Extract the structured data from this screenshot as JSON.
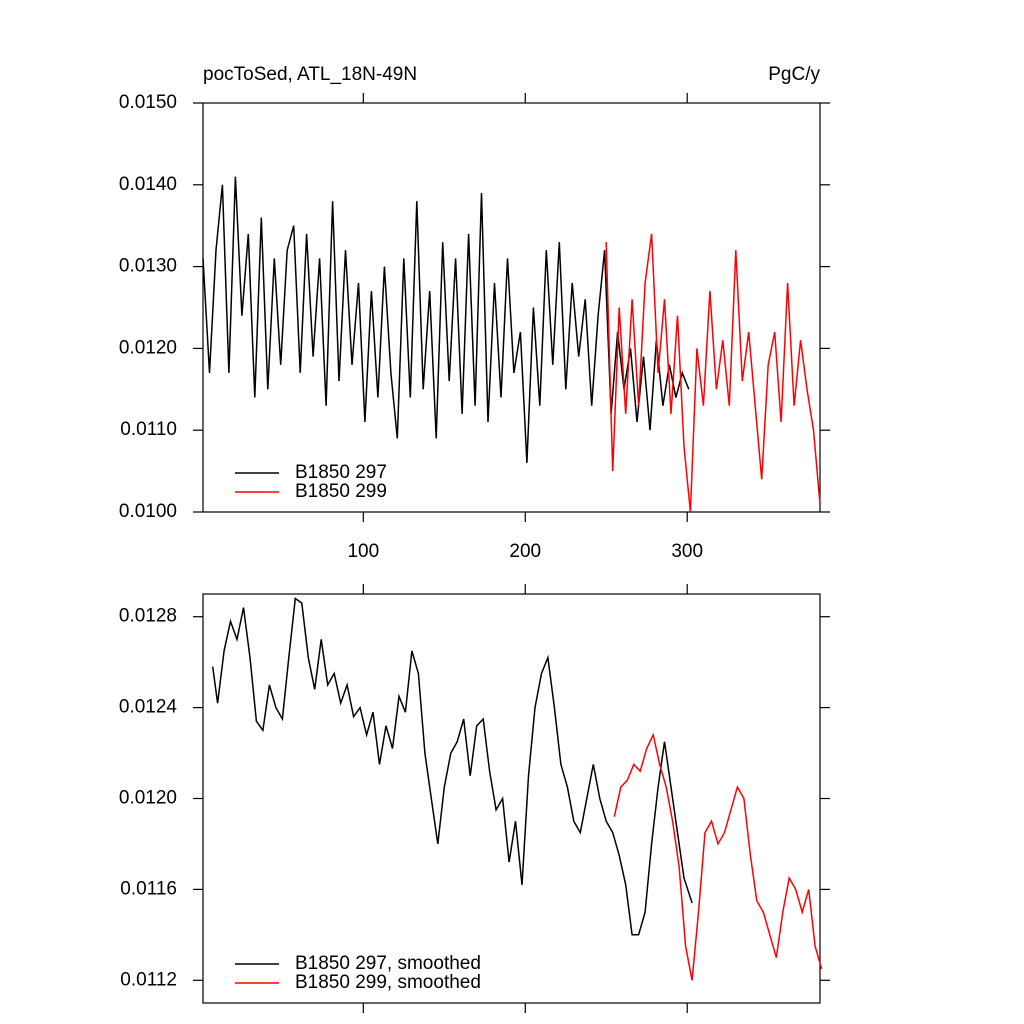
{
  "chart_data": [
    {
      "type": "line",
      "title": "pocToSed, ATL_18N-49N",
      "units": "PgC/y",
      "xlim": [
        1,
        382
      ],
      "xticks": [
        100,
        200,
        300
      ],
      "ylim": [
        0.01,
        0.015
      ],
      "yticks": [
        {
          "value": 0.01,
          "label": "0.0100"
        },
        {
          "value": 0.011,
          "label": "0.0110"
        },
        {
          "value": 0.012,
          "label": "0.0120"
        },
        {
          "value": 0.013,
          "label": "0.0130"
        },
        {
          "value": 0.014,
          "label": "0.0140"
        },
        {
          "value": 0.015,
          "label": "0.0150"
        }
      ],
      "legend": "lower left",
      "series": [
        {
          "name": "B1850 297",
          "color": "#000000",
          "x": [
            1,
            5,
            9,
            13,
            17,
            21,
            25,
            29,
            33,
            37,
            41,
            45,
            49,
            53,
            57,
            61,
            65,
            69,
            73,
            77,
            81,
            85,
            89,
            93,
            97,
            101,
            105,
            109,
            113,
            117,
            121,
            125,
            129,
            133,
            137,
            141,
            145,
            149,
            153,
            157,
            161,
            165,
            169,
            173,
            177,
            181,
            185,
            189,
            193,
            197,
            201,
            205,
            209,
            213,
            217,
            221,
            225,
            229,
            233,
            237,
            241,
            245,
            249,
            253,
            257,
            261,
            265,
            269,
            273,
            277,
            281,
            285,
            289,
            293,
            297,
            301
          ],
          "values": [
            0.0131,
            0.0117,
            0.0132,
            0.014,
            0.0117,
            0.0141,
            0.0124,
            0.0134,
            0.0114,
            0.0136,
            0.0115,
            0.0131,
            0.0118,
            0.0132,
            0.0135,
            0.0117,
            0.0134,
            0.0119,
            0.0131,
            0.0113,
            0.0138,
            0.0116,
            0.0132,
            0.0118,
            0.0128,
            0.0111,
            0.0127,
            0.0114,
            0.013,
            0.0117,
            0.0109,
            0.0131,
            0.0114,
            0.0138,
            0.0115,
            0.0127,
            0.0109,
            0.0133,
            0.0116,
            0.0131,
            0.0112,
            0.0134,
            0.0113,
            0.0139,
            0.0111,
            0.0128,
            0.0114,
            0.0131,
            0.0117,
            0.0122,
            0.0106,
            0.0125,
            0.0113,
            0.0132,
            0.0118,
            0.0133,
            0.0115,
            0.0128,
            0.0119,
            0.0126,
            0.0113,
            0.0124,
            0.0132,
            0.0112,
            0.0122,
            0.0115,
            0.012,
            0.0111,
            0.0119,
            0.011,
            0.0121,
            0.0113,
            0.0118,
            0.0114,
            0.0117,
            0.0115
          ]
        },
        {
          "name": "B1850 299",
          "color": "#ff0000",
          "x": [
            250,
            254,
            258,
            262,
            266,
            270,
            274,
            278,
            282,
            286,
            290,
            294,
            298,
            302,
            306,
            310,
            314,
            318,
            322,
            326,
            330,
            334,
            338,
            342,
            346,
            350,
            354,
            358,
            362,
            366,
            370,
            374,
            378,
            382
          ],
          "values": [
            0.0133,
            0.0105,
            0.0125,
            0.0112,
            0.0126,
            0.0113,
            0.0128,
            0.0134,
            0.0117,
            0.0126,
            0.0112,
            0.0124,
            0.0108,
            0.01,
            0.012,
            0.0113,
            0.0127,
            0.0115,
            0.0121,
            0.0113,
            0.0132,
            0.0116,
            0.0122,
            0.0113,
            0.0104,
            0.0118,
            0.0122,
            0.0111,
            0.0128,
            0.0113,
            0.0121,
            0.0115,
            0.011,
            0.0101
          ]
        }
      ]
    },
    {
      "type": "line",
      "xlim": [
        1,
        382
      ],
      "ylim": [
        0.0111,
        0.0129
      ],
      "yticks": [
        {
          "value": 0.0112,
          "label": "0.0112"
        },
        {
          "value": 0.0116,
          "label": "0.0116"
        },
        {
          "value": 0.012,
          "label": "0.0120"
        },
        {
          "value": 0.0124,
          "label": "0.0124"
        },
        {
          "value": 0.0128,
          "label": "0.0128"
        }
      ],
      "legend": "lower left",
      "series": [
        {
          "name": "B1850 297, smoothed",
          "color": "#000000",
          "x": [
            7,
            10,
            14,
            18,
            22,
            26,
            30,
            34,
            38,
            42,
            46,
            50,
            54,
            58,
            62,
            66,
            70,
            74,
            78,
            82,
            86,
            90,
            94,
            98,
            102,
            106,
            110,
            114,
            118,
            122,
            126,
            130,
            134,
            138,
            142,
            146,
            150,
            154,
            158,
            162,
            166,
            170,
            174,
            178,
            182,
            186,
            190,
            194,
            198,
            202,
            206,
            210,
            214,
            218,
            222,
            226,
            230,
            234,
            238,
            242,
            246,
            250,
            254,
            258,
            262,
            266,
            270,
            274,
            278,
            282,
            286,
            290,
            294,
            298,
            303
          ],
          "values": [
            0.01258,
            0.01242,
            0.01265,
            0.01278,
            0.0127,
            0.01284,
            0.01262,
            0.01234,
            0.0123,
            0.0125,
            0.0124,
            0.01235,
            0.01262,
            0.01288,
            0.01286,
            0.01262,
            0.01248,
            0.0127,
            0.0125,
            0.01255,
            0.01242,
            0.0125,
            0.01236,
            0.0124,
            0.01228,
            0.01238,
            0.01215,
            0.01232,
            0.01222,
            0.01245,
            0.01238,
            0.01265,
            0.01255,
            0.0122,
            0.012,
            0.0118,
            0.01205,
            0.0122,
            0.01225,
            0.01235,
            0.0121,
            0.01232,
            0.01235,
            0.01212,
            0.01195,
            0.012,
            0.01172,
            0.0119,
            0.01162,
            0.0121,
            0.0124,
            0.01255,
            0.01262,
            0.0124,
            0.01215,
            0.01205,
            0.0119,
            0.01185,
            0.012,
            0.01215,
            0.012,
            0.0119,
            0.01185,
            0.01175,
            0.01162,
            0.0114,
            0.0114,
            0.0115,
            0.0118,
            0.01205,
            0.01225,
            0.01205,
            0.01185,
            0.01165,
            0.01154
          ]
        },
        {
          "name": "B1850 299, smoothed",
          "color": "#ff0000",
          "x": [
            255,
            259,
            263,
            267,
            271,
            275,
            279,
            283,
            287,
            291,
            295,
            299,
            303,
            307,
            311,
            315,
            319,
            323,
            327,
            331,
            335,
            339,
            343,
            347,
            351,
            355,
            359,
            363,
            367,
            371,
            375,
            379,
            383
          ],
          "values": [
            0.01192,
            0.01205,
            0.01208,
            0.01215,
            0.01212,
            0.01222,
            0.01228,
            0.01215,
            0.01205,
            0.0119,
            0.0117,
            0.01135,
            0.0112,
            0.0115,
            0.01185,
            0.0119,
            0.0118,
            0.01185,
            0.01195,
            0.01205,
            0.012,
            0.01175,
            0.01155,
            0.0115,
            0.0114,
            0.0113,
            0.0115,
            0.01165,
            0.0116,
            0.0115,
            0.0116,
            0.01135,
            0.01125
          ]
        }
      ]
    }
  ]
}
